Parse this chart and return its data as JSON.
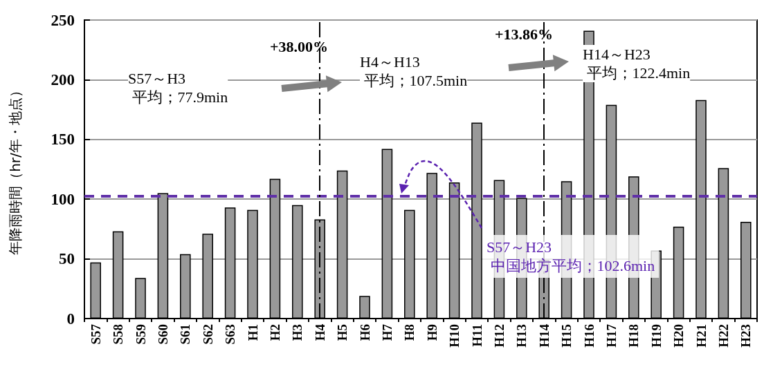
{
  "chart_data": {
    "type": "bar",
    "ylabel": "年降雨時間（hr/年・地点）",
    "categories": [
      "S57",
      "S58",
      "S59",
      "S60",
      "S61",
      "S62",
      "S63",
      "H1",
      "H2",
      "H3",
      "H4",
      "H5",
      "H6",
      "H7",
      "H8",
      "H9",
      "H10",
      "H11",
      "H12",
      "H13",
      "H14",
      "H15",
      "H16",
      "H17",
      "H18",
      "H19",
      "H20",
      "H21",
      "H22",
      "H23"
    ],
    "values": [
      47,
      73,
      34,
      105,
      54,
      71,
      93,
      91,
      117,
      95,
      83,
      124,
      19,
      142,
      91,
      122,
      114,
      164,
      116,
      101,
      49,
      115,
      241,
      179,
      119,
      57,
      77,
      183,
      126,
      81
    ],
    "color": "#999999",
    "ylim": [
      0,
      250
    ],
    "yticks": [
      0,
      50,
      100,
      150,
      200,
      250
    ],
    "grid": "y",
    "ref_lines": [
      {
        "axis": "y",
        "value": 102.6,
        "color": "#6030a8",
        "line_style": "dashed"
      },
      {
        "axis": "x",
        "value": "H4",
        "color": "#000000",
        "line_style": "dashdot"
      },
      {
        "axis": "x",
        "value": "H14",
        "color": "#000000",
        "line_style": "dashdot"
      }
    ],
    "annotations": [
      "S57～H3\n 平均；77.9min",
      "+38.00%",
      "H4～H13\n 平均；107.5min",
      "+13.86%",
      "H14～H23\n 平均；122.4min",
      "S57～H23\n 中国地方平均；102.6min"
    ]
  }
}
